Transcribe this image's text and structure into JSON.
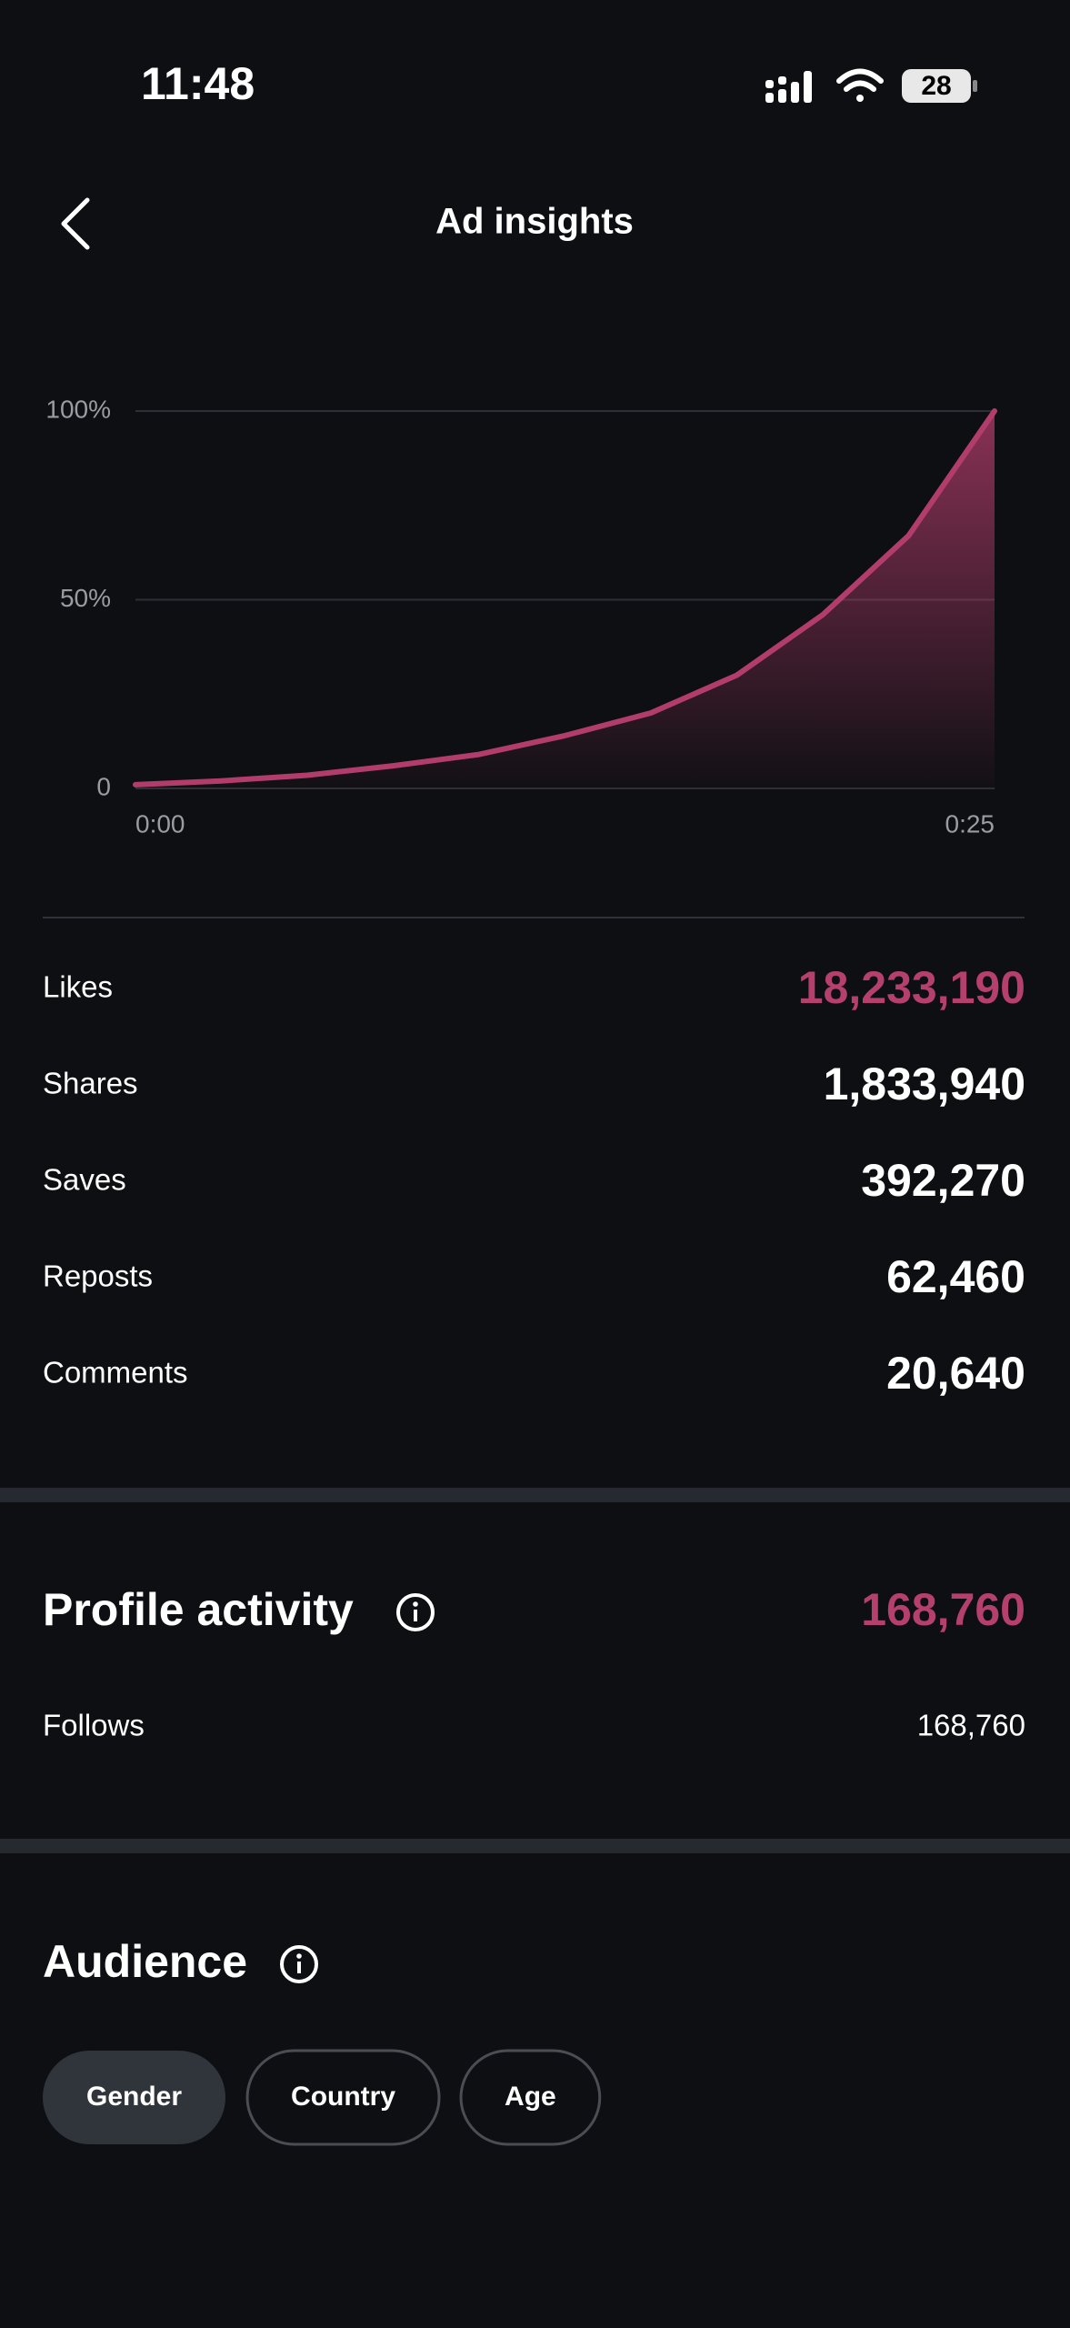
{
  "status_bar": {
    "time": "11:48",
    "battery": "28"
  },
  "header": {
    "title": "Ad insights"
  },
  "chart_data": {
    "type": "area",
    "x": [
      0,
      2.5,
      5,
      7.5,
      10,
      12.5,
      15,
      17.5,
      20,
      22.5,
      25
    ],
    "values": [
      1,
      2,
      3.5,
      6,
      9,
      14,
      20,
      30,
      46,
      67,
      100
    ],
    "color": "#b23d6c",
    "xlim": [
      0,
      25
    ],
    "xticks": [
      {
        "value": 0,
        "label": "0:00"
      },
      {
        "value": 25,
        "label": "0:25"
      }
    ],
    "ylim": [
      0,
      100
    ],
    "yticks": [
      0,
      {
        "value": 50,
        "label": "50%"
      },
      {
        "value": 100,
        "label": "100%"
      }
    ],
    "grid": true
  },
  "metrics": [
    {
      "label": "Likes",
      "value": "18,233,190",
      "color": "#b5406d"
    },
    {
      "label": "Shares",
      "value": "1,833,940",
      "color": "#ffffff"
    },
    {
      "label": "Saves",
      "value": "392,270",
      "color": "#ffffff"
    },
    {
      "label": "Reposts",
      "value": "62,460",
      "color": "#ffffff"
    },
    {
      "label": "Comments",
      "value": "20,640",
      "color": "#ffffff"
    }
  ],
  "profile_activity": {
    "title": "Profile activity",
    "total": "168,760",
    "total_color": "#b5406d",
    "rows": [
      {
        "label": "Follows",
        "value": "168,760"
      }
    ]
  },
  "audience": {
    "title": "Audience",
    "tabs": [
      {
        "label": "Gender",
        "selected": true
      },
      {
        "label": "Country",
        "selected": false
      },
      {
        "label": "Age",
        "selected": false
      }
    ]
  }
}
